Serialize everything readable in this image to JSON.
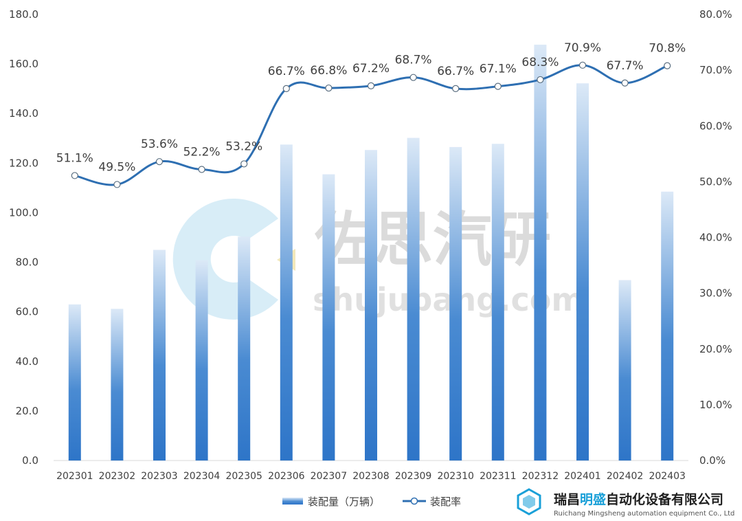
{
  "chart_data": {
    "type": "bar+line",
    "categories": [
      "202301",
      "202302",
      "202303",
      "202304",
      "202305",
      "202306",
      "202307",
      "202308",
      "202309",
      "202310",
      "202311",
      "202312",
      "202401",
      "202402",
      "202403"
    ],
    "series": [
      {
        "name": "装配量（万辆）",
        "type": "bar",
        "axis": "left",
        "values": [
          63.0,
          61.2,
          85.0,
          80.8,
          90.3,
          127.5,
          115.5,
          125.3,
          130.2,
          126.5,
          127.8,
          167.8,
          152.2,
          72.8,
          108.5
        ]
      },
      {
        "name": "装配率",
        "type": "line",
        "axis": "right",
        "values": [
          51.1,
          49.5,
          53.6,
          52.2,
          53.2,
          66.7,
          66.8,
          67.2,
          68.7,
          66.7,
          67.1,
          68.3,
          70.9,
          67.7,
          70.8
        ],
        "labels": [
          "51.1%",
          "49.5%",
          "53.6%",
          "52.2%",
          "53.2%",
          "66.7%",
          "66.8%",
          "67.2%",
          "68.7%",
          "66.7%",
          "67.1%",
          "68.3%",
          "70.9%",
          "67.7%",
          "70.8%"
        ]
      }
    ],
    "y_left": {
      "min": 0,
      "max": 180,
      "step": 20,
      "tick_labels": [
        "0.0",
        "20.0",
        "40.0",
        "60.0",
        "80.0",
        "100.0",
        "120.0",
        "140.0",
        "160.0",
        "180.0"
      ]
    },
    "y_right": {
      "min": 0,
      "max": 80,
      "step": 10,
      "tick_labels": [
        "0.0%",
        "10.0%",
        "20.0%",
        "30.0%",
        "40.0%",
        "50.0%",
        "60.0%",
        "70.0%",
        "80.0%"
      ]
    },
    "legend": {
      "placement": "bottom-center",
      "entries": [
        "装配量（万辆）",
        "装配率"
      ]
    },
    "grid": false,
    "colors": {
      "bar_bottom": "#2e75c8",
      "bar_top": "#dce9f7",
      "line": "#2e6fb2",
      "marker_fill": "#ffffff",
      "text": "#404040"
    }
  },
  "watermark": {
    "text_cn": "佐思汽研",
    "text_en": "shujubang.com"
  },
  "branding": {
    "company_cn_part1": "瑞昌",
    "company_cn_accent": "明盛",
    "company_cn_part2": "自动化设备有限公司",
    "company_en": "Ruichang Mingsheng automation equipment Co., Ltd"
  }
}
